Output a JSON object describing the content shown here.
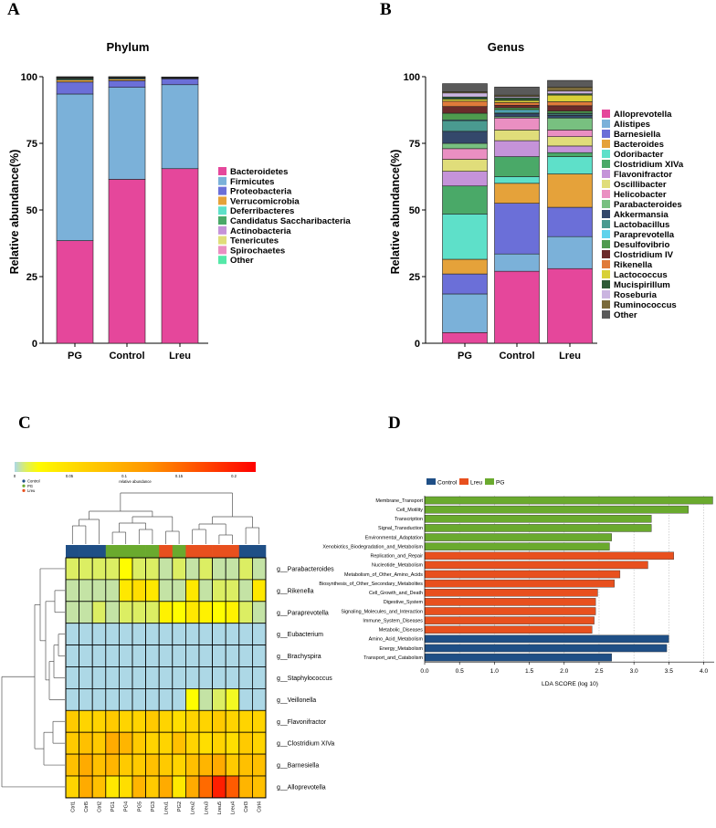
{
  "panel_labels": [
    "A",
    "B",
    "C",
    "D"
  ],
  "chart_data": [
    {
      "type": "bar",
      "stacked": true,
      "title": "Phylum",
      "ylabel": "Relative abundance(%)",
      "xlabel": "",
      "ylim": [
        0,
        100
      ],
      "yticks": [
        "0",
        "25",
        "50",
        "75",
        "100"
      ],
      "categories": [
        "PG",
        "Control",
        "Lreu"
      ],
      "series": [
        {
          "name": "Bacteroidetes",
          "color": "#e5479b",
          "values": [
            38.5,
            61.5,
            65.5
          ]
        },
        {
          "name": "Firmicutes",
          "color": "#7bb1d9",
          "values": [
            55,
            34.5,
            31.5
          ]
        },
        {
          "name": "Proteobacteria",
          "color": "#6b6fd8",
          "values": [
            4.5,
            2.5,
            2.2
          ]
        },
        {
          "name": "Verrucomicrobia",
          "color": "#e5a23a",
          "values": [
            0.8,
            0.6,
            0.2
          ]
        },
        {
          "name": "Deferribacteres",
          "color": "#5ee0c9",
          "values": [
            0.3,
            0.3,
            0.1
          ]
        },
        {
          "name": "Candidatus Saccharibacteria",
          "color": "#4aa968",
          "values": [
            0.3,
            0.2,
            0.1
          ]
        },
        {
          "name": "Actinobacteria",
          "color": "#c593d9",
          "values": [
            0.2,
            0.2,
            0.1
          ]
        },
        {
          "name": "Tenericutes",
          "color": "#e0dd7a",
          "values": [
            0.2,
            0.1,
            0.1
          ]
        },
        {
          "name": "Spirochaetes",
          "color": "#ea8fc2",
          "values": [
            0.1,
            0.05,
            0.05
          ]
        },
        {
          "name": "Other",
          "color": "#55e8a8",
          "values": [
            0.1,
            0.05,
            0.05
          ]
        }
      ]
    },
    {
      "type": "bar",
      "stacked": true,
      "title": "Genus",
      "ylabel": "Relative abundance(%)",
      "xlabel": "",
      "ylim": [
        0,
        100
      ],
      "yticks": [
        "0",
        "25",
        "50",
        "75",
        "100"
      ],
      "categories": [
        "PG",
        "Control",
        "Lreu"
      ],
      "series": [
        {
          "name": "Alloprevotella",
          "color": "#e5479b",
          "values": [
            4,
            27,
            28
          ]
        },
        {
          "name": "Alistipes",
          "color": "#7bb1d9",
          "values": [
            14.5,
            6.5,
            12
          ]
        },
        {
          "name": "Barnesiella",
          "color": "#6b6fd8",
          "values": [
            7.5,
            19,
            11
          ]
        },
        {
          "name": "Bacteroides",
          "color": "#e5a23a",
          "values": [
            5.5,
            7.5,
            12.5
          ]
        },
        {
          "name": "Odoribacter",
          "color": "#5ee0c9",
          "values": [
            17,
            2.5,
            6.5
          ]
        },
        {
          "name": "Clostridium XIVa",
          "color": "#4aa968",
          "values": [
            10.5,
            7.5,
            1.5
          ]
        },
        {
          "name": "Flavonifractor",
          "color": "#c593d9",
          "values": [
            5.5,
            6,
            2.5
          ]
        },
        {
          "name": "Oscillibacter",
          "color": "#e0dd7a",
          "values": [
            4.5,
            4,
            3.5
          ]
        },
        {
          "name": "Helicobacter",
          "color": "#ea8fc2",
          "values": [
            4,
            4.5,
            2.5
          ]
        },
        {
          "name": "Parabacteroides",
          "color": "#78c080",
          "values": [
            2,
            0.5,
            4.5
          ]
        },
        {
          "name": "Akkermansia",
          "color": "#34486b",
          "values": [
            4.5,
            1.2,
            1
          ]
        },
        {
          "name": "Lactobacillus",
          "color": "#4a9a90",
          "values": [
            4,
            0.5,
            0.5
          ]
        },
        {
          "name": "Paraprevotella",
          "color": "#5fd2ec",
          "values": [
            0.3,
            0.8,
            0.3
          ]
        },
        {
          "name": "Desulfovibrio",
          "color": "#4e9a4e",
          "values": [
            2.5,
            0.8,
            0.8
          ]
        },
        {
          "name": "Clostridium IV",
          "color": "#6b2a2a",
          "values": [
            2.5,
            1,
            2
          ]
        },
        {
          "name": "Rikenella",
          "color": "#e07a3a",
          "values": [
            2,
            1,
            1.5
          ]
        },
        {
          "name": "Lactococcus",
          "color": "#d8d038",
          "values": [
            0.8,
            0.8,
            2.5
          ]
        },
        {
          "name": "Mucispirillum",
          "color": "#2d5a35",
          "values": [
            0.8,
            1,
            0.5
          ]
        },
        {
          "name": "Roseburia",
          "color": "#cab4e0",
          "values": [
            1.5,
            0.5,
            1
          ]
        },
        {
          "name": "Ruminococcus",
          "color": "#7a6a3a",
          "values": [
            0.5,
            0.5,
            1.5
          ]
        },
        {
          "name": "Other",
          "color": "#5a5a5a",
          "values": [
            3,
            3,
            2.5
          ]
        }
      ]
    },
    {
      "type": "heatmap",
      "title": "",
      "scale_title": "relative abundance",
      "scale_ticks": [
        "0",
        "0.05",
        "0.1",
        "0.15",
        "0.2"
      ],
      "scale_range": [
        0,
        0.22
      ],
      "group_legend": [
        {
          "name": "Control",
          "color": "#1f4f86"
        },
        {
          "name": "PG",
          "color": "#6aaa2e"
        },
        {
          "name": "Lreu",
          "color": "#e8501e"
        }
      ],
      "column_groups": [
        "Control",
        "Control",
        "Control",
        "PG",
        "PG",
        "PG",
        "PG",
        "Lreu",
        "PG",
        "Lreu",
        "Lreu",
        "Lreu",
        "Lreu",
        "Control",
        "Control"
      ],
      "columns": [
        "Ctrl1",
        "Ctrl5",
        "Ctrl2",
        "PG1",
        "PG4",
        "PG5",
        "PG3",
        "Lreu1",
        "PG2",
        "Lreu2",
        "Lreu3",
        "Lreu5",
        "Lreu4",
        "Ctrl3",
        "Ctrl4"
      ],
      "rows": [
        "g__Parabacteroides",
        "g__Rikenella",
        "g__Paraprevotella",
        "g__Eubacterium",
        "g__Brachyspira",
        "g__Staphylococcus",
        "g__Veillonella",
        "g__Flavonifractor",
        "g__Clostridium XIVa",
        "g__Barnesiella",
        "g__Alloprevotella"
      ],
      "values": [
        [
          0.01,
          0.01,
          0.01,
          0.01,
          0.02,
          0.01,
          0.01,
          0.005,
          0.01,
          0.005,
          0.01,
          0.005,
          0.005,
          0.01,
          0.005
        ],
        [
          0.005,
          0.005,
          0.005,
          0.005,
          0.04,
          0.05,
          0.04,
          0.005,
          0.005,
          0.04,
          0.005,
          0.01,
          0.01,
          0.005,
          0.04
        ],
        [
          0.005,
          0.005,
          0.01,
          0.005,
          0.01,
          0.01,
          0.01,
          0.03,
          0.02,
          0.04,
          0.03,
          0.02,
          0.03,
          0.01,
          0.005
        ],
        [
          0,
          0,
          0,
          0,
          0,
          0,
          0,
          0,
          0,
          0,
          0,
          0,
          0,
          0,
          0
        ],
        [
          0,
          0,
          0,
          0,
          0,
          0,
          0,
          0,
          0,
          0,
          0,
          0,
          0,
          0,
          0
        ],
        [
          0,
          0,
          0,
          0,
          0,
          0,
          0,
          0,
          0,
          0,
          0,
          0,
          0,
          0,
          0
        ],
        [
          0,
          0,
          0,
          0,
          0,
          0,
          0,
          0,
          0,
          0.02,
          0.005,
          0.01,
          0.015,
          0,
          0
        ],
        [
          0.07,
          0.06,
          0.06,
          0.07,
          0.06,
          0.06,
          0.07,
          0.06,
          0.05,
          0.06,
          0.06,
          0.07,
          0.06,
          0.06,
          0.06
        ],
        [
          0.07,
          0.08,
          0.07,
          0.1,
          0.09,
          0.07,
          0.06,
          0.06,
          0.08,
          0.06,
          0.05,
          0.06,
          0.05,
          0.07,
          0.06
        ],
        [
          0.08,
          0.1,
          0.08,
          0.09,
          0.07,
          0.07,
          0.08,
          0.07,
          0.06,
          0.08,
          0.09,
          0.1,
          0.07,
          0.08,
          0.08
        ],
        [
          0.06,
          0.1,
          0.08,
          0.04,
          0.05,
          0.09,
          0.07,
          0.1,
          0.04,
          0.1,
          0.15,
          0.2,
          0.16,
          0.09,
          0.08
        ]
      ]
    },
    {
      "type": "bar",
      "orientation": "horizontal",
      "title": "",
      "xlabel": "LDA SCORE (log 10)",
      "ylabel": "",
      "xlim": [
        0,
        4.15
      ],
      "xticks": [
        "0.0",
        "0.5",
        "1.0",
        "1.5",
        "2.0",
        "2.5",
        "3.0",
        "3.5",
        "4.0"
      ],
      "legend": [
        {
          "name": "Control",
          "color": "#1f4f86"
        },
        {
          "name": "Lreu",
          "color": "#e8501e"
        },
        {
          "name": "PG",
          "color": "#6aaa2e"
        }
      ],
      "bars": [
        {
          "label": "Membrane_Transport",
          "group": "PG",
          "value": 4.13
        },
        {
          "label": "Cell_Motility",
          "group": "PG",
          "value": 3.78
        },
        {
          "label": "Transcription",
          "group": "PG",
          "value": 3.25
        },
        {
          "label": "Signal_Transduction",
          "group": "PG",
          "value": 3.25
        },
        {
          "label": "Environmental_Adaptation",
          "group": "PG",
          "value": 2.68
        },
        {
          "label": "Xenobiotics_Biodegradation_and_Metabolism",
          "group": "PG",
          "value": 2.65
        },
        {
          "label": "Replication_and_Repair",
          "group": "Lreu",
          "value": 3.57
        },
        {
          "label": "Nucleotide_Metabolism",
          "group": "Lreu",
          "value": 3.2
        },
        {
          "label": "Metabolism_of_Other_Amino_Acids",
          "group": "Lreu",
          "value": 2.8
        },
        {
          "label": "Biosynthesis_of_Other_Secondary_Metabolites",
          "group": "Lreu",
          "value": 2.72
        },
        {
          "label": "Cell_Growth_and_Death",
          "group": "Lreu",
          "value": 2.48
        },
        {
          "label": "Digestive_System",
          "group": "Lreu",
          "value": 2.45
        },
        {
          "label": "Signaling_Molecules_and_Interaction",
          "group": "Lreu",
          "value": 2.45
        },
        {
          "label": "Immune_System_Diseases",
          "group": "Lreu",
          "value": 2.43
        },
        {
          "label": "Metabolic_Diseases",
          "group": "Lreu",
          "value": 2.4
        },
        {
          "label": "Amino_Acid_Metabolism",
          "group": "Control",
          "value": 3.5
        },
        {
          "label": "Energy_Metabolism",
          "group": "Control",
          "value": 3.47
        },
        {
          "label": "Transport_and_Catabolism",
          "group": "Control",
          "value": 2.68
        }
      ]
    }
  ]
}
